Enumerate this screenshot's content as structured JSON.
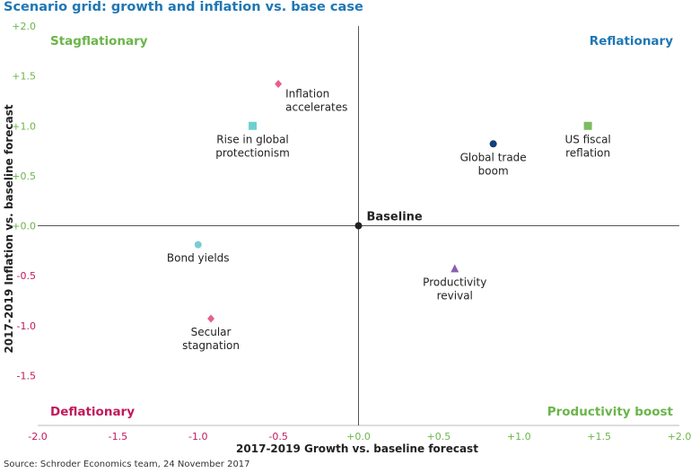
{
  "chart_data": {
    "type": "scatter",
    "title": "Scenario grid: growth and inflation vs. base case",
    "xlabel": "2017-2019 Growth vs. baseline forecast",
    "ylabel": "2017-2019 Inflation vs. baseline forecast",
    "xlim": [
      -2.0,
      2.0
    ],
    "ylim": [
      -2.0,
      2.0
    ],
    "grid": false,
    "x_ticks": [
      {
        "value": -2.0,
        "label": "-2.0"
      },
      {
        "value": -1.5,
        "label": "-1.5"
      },
      {
        "value": -1.0,
        "label": "-1.0"
      },
      {
        "value": -0.5,
        "label": "-0.5"
      },
      {
        "value": 0.0,
        "label": "+0.0"
      },
      {
        "value": 0.5,
        "label": "+0.5"
      },
      {
        "value": 1.0,
        "label": "+1.0"
      },
      {
        "value": 1.5,
        "label": "+1.5"
      },
      {
        "value": 2.0,
        "label": "+2.0"
      }
    ],
    "y_ticks": [
      {
        "value": 2.0,
        "label": "+2.0"
      },
      {
        "value": 1.5,
        "label": "+1.5"
      },
      {
        "value": 1.0,
        "label": "+1.0"
      },
      {
        "value": 0.5,
        "label": "+0.5"
      },
      {
        "value": 0.0,
        "label": "+0.0"
      },
      {
        "value": -0.5,
        "label": "-0.5"
      },
      {
        "value": -1.0,
        "label": "-1.0"
      },
      {
        "value": -1.5,
        "label": "-1.5"
      }
    ],
    "quadrants": [
      {
        "label": "Stagflationary",
        "position": "top-left",
        "color": "#6bb54a"
      },
      {
        "label": "Reflationary",
        "position": "top-right",
        "color": "#1f77b4"
      },
      {
        "label": "Deflationary",
        "position": "bottom-left",
        "color": "#c2185b"
      },
      {
        "label": "Productivity boost",
        "position": "bottom-right",
        "color": "#6bb54a"
      }
    ],
    "points": [
      {
        "name": "Baseline",
        "label": [
          "Baseline"
        ],
        "x": 0.0,
        "y": 0.0,
        "marker": "circle",
        "color": "#222222",
        "label_pos": "upper-right",
        "bold": true
      },
      {
        "name": "Inflation accelerates",
        "label": [
          "Inflation",
          "accelerates"
        ],
        "x": -0.5,
        "y": 1.42,
        "marker": "diamond",
        "color": "#e5608c",
        "label_pos": "right"
      },
      {
        "name": "Rise in global protectionism",
        "label": [
          "Rise in global",
          "protectionism"
        ],
        "x": -0.66,
        "y": 1.0,
        "marker": "square",
        "color": "#6fcfd0",
        "label_pos": "below"
      },
      {
        "name": "Global trade boom",
        "label": [
          "Global trade",
          "boom"
        ],
        "x": 0.84,
        "y": 0.82,
        "marker": "circle",
        "color": "#123f7a",
        "label_pos": "below"
      },
      {
        "name": "US fiscal reflation",
        "label": [
          "US fiscal",
          "reflation"
        ],
        "x": 1.43,
        "y": 1.0,
        "marker": "square",
        "color": "#7dbb5e",
        "label_pos": "below"
      },
      {
        "name": "Bond yields",
        "label": [
          "Bond yields"
        ],
        "x": -1.0,
        "y": -0.19,
        "marker": "circle",
        "color": "#7cccd4",
        "label_pos": "below"
      },
      {
        "name": "Productivity revival",
        "label": [
          "Productivity",
          "revival"
        ],
        "x": 0.6,
        "y": -0.43,
        "marker": "triangle",
        "color": "#8a5fb1",
        "label_pos": "below"
      },
      {
        "name": "Secular stagnation",
        "label": [
          "Secular",
          "stagnation"
        ],
        "x": -0.92,
        "y": -0.93,
        "marker": "diamond",
        "color": "#e5608c",
        "label_pos": "below"
      }
    ],
    "colors": {
      "x_axis_tick": "#6bb54a",
      "x_axis_tick_negative": "#c2185b",
      "y_axis_tick": "#6bb54a",
      "y_axis_tick_negative": "#c2185b"
    }
  },
  "source": "Source: Schroder Economics team, 24 November 2017"
}
